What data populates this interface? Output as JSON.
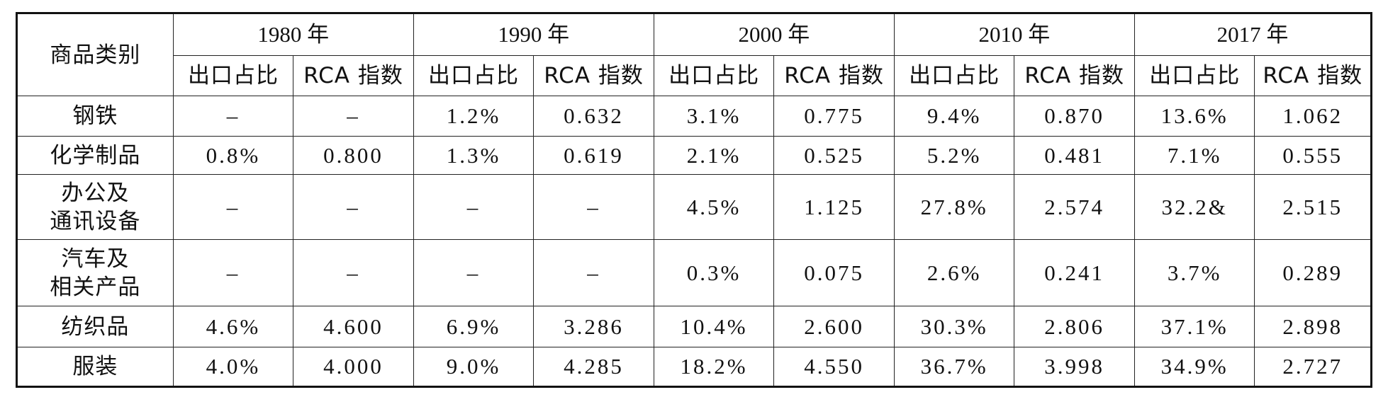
{
  "table": {
    "category_header": "商品类别",
    "years": [
      "1980 年",
      "1990 年",
      "2000 年",
      "2010 年",
      "2017 年"
    ],
    "sub_headers": [
      "出口占比",
      "RCA 指数"
    ],
    "rows": [
      {
        "category": "钢铁",
        "values": [
          "–",
          "–",
          "1.2%",
          "0.632",
          "3.1%",
          "0.775",
          "9.4%",
          "0.870",
          "13.6%",
          "1.062"
        ]
      },
      {
        "category": "化学制品",
        "values": [
          "0.8%",
          "0.800",
          "1.3%",
          "0.619",
          "2.1%",
          "0.525",
          "5.2%",
          "0.481",
          "7.1%",
          "0.555"
        ]
      },
      {
        "category_line1": "办公及",
        "category_line2": "通讯设备",
        "values": [
          "–",
          "–",
          "–",
          "–",
          "4.5%",
          "1.125",
          "27.8%",
          "2.574",
          "32.2&",
          "2.515"
        ]
      },
      {
        "category_line1": "汽车及",
        "category_line2": "相关产品",
        "values": [
          "–",
          "–",
          "–",
          "–",
          "0.3%",
          "0.075",
          "2.6%",
          "0.241",
          "3.7%",
          "0.289"
        ]
      },
      {
        "category": "纺织品",
        "values": [
          "4.6%",
          "4.600",
          "6.9%",
          "3.286",
          "10.4%",
          "2.600",
          "30.3%",
          "2.806",
          "37.1%",
          "2.898"
        ]
      },
      {
        "category": "服装",
        "values": [
          "4.0%",
          "4.000",
          "9.0%",
          "4.285",
          "18.2%",
          "4.550",
          "36.7%",
          "3.998",
          "34.9%",
          "2.727"
        ]
      }
    ]
  }
}
